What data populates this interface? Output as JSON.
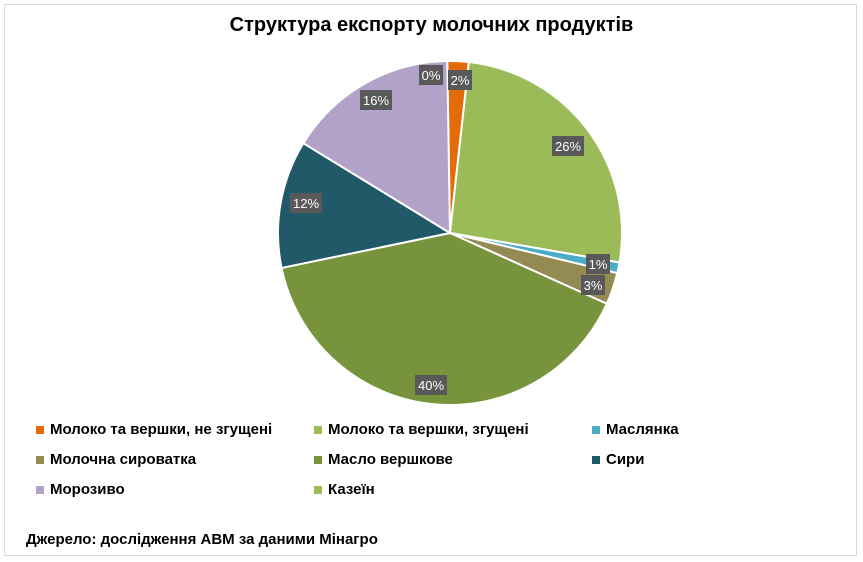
{
  "chart_data": {
    "type": "pie",
    "title": "Структура експорту молочних продуктів",
    "slices": [
      {
        "label": "Казеїн",
        "value": 0,
        "color": "#9bbb59",
        "label_text": "0%"
      },
      {
        "label": "Молоко та вершки, не згущені",
        "value": 2,
        "color": "#e36c09",
        "label_text": "2%"
      },
      {
        "label": "Молоко та вершки, згущені",
        "value": 26,
        "color": "#9bbb59",
        "label_text": "26%"
      },
      {
        "label": "Маслянка",
        "value": 1,
        "color": "#4bacc6",
        "label_text": "1%"
      },
      {
        "label": "Молочна сироватка",
        "value": 3,
        "color": "#948a54",
        "label_text": "3%"
      },
      {
        "label": "Масло вершкове",
        "value": 40,
        "color": "#77933c",
        "label_text": "40%"
      },
      {
        "label": "Сири",
        "value": 12,
        "color": "#215968",
        "label_text": "12%"
      },
      {
        "label": "Морозиво",
        "value": 16,
        "color": "#b3a2c7",
        "label_text": "16%"
      }
    ],
    "legend_placement": "bottom"
  },
  "legend": [
    {
      "label": "Молоко та вершки, не згущені",
      "color": "#e36c09"
    },
    {
      "label": "Молоко та вершки, згущені",
      "color": "#9bbb59"
    },
    {
      "label": "Маслянка",
      "color": "#4bacc6"
    },
    {
      "label": "Молочна сироватка",
      "color": "#948a54"
    },
    {
      "label": "Масло вершкове",
      "color": "#77933c"
    },
    {
      "label": "Сири",
      "color": "#215968"
    },
    {
      "label": "Морозиво",
      "color": "#b3a2c7"
    },
    {
      "label": "Казеїн",
      "color": "#9bbb59"
    }
  ],
  "source": "Джерело: дослідження АВМ за даними Мінагро"
}
